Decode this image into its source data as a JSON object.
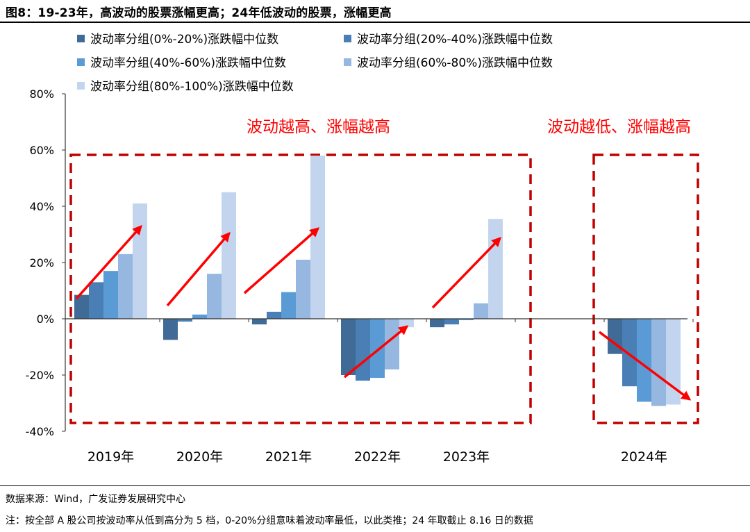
{
  "header": {
    "title": "图8：19-23年，高波动的股票涨幅更高；24年低波动的股票，涨幅更高"
  },
  "footer": {
    "source": "数据来源：Wind，广发证券发展研究中心",
    "note": "注：按全部 A 股公司按波动率从低到高分为 5 档，0-20%分组意味着波动率最低，以此类推；24 年取截止 8.16 日的数据"
  },
  "chart_data": {
    "type": "bar",
    "categories": [
      "2019年",
      "2020年",
      "2021年",
      "2022年",
      "2023年",
      "2024年"
    ],
    "series": [
      {
        "name": "波动率分组(0%-20%)涨跌幅中位数",
        "color": "#3f6b96",
        "values": [
          8.5,
          -7.5,
          -2.0,
          -20.0,
          -3.0,
          -12.5
        ]
      },
      {
        "name": "波动率分组(20%-40%)涨跌幅中位数",
        "color": "#4a7fb5",
        "values": [
          13.0,
          -1.0,
          2.5,
          -22.0,
          -2.0,
          -24.0
        ]
      },
      {
        "name": "波动率分组(40%-60%)涨跌幅中位数",
        "color": "#5b9bd5",
        "values": [
          17.0,
          1.5,
          9.5,
          -21.0,
          -0.5,
          -29.5
        ]
      },
      {
        "name": "波动率分组(60%-80%)涨跌幅中位数",
        "color": "#95b7e0",
        "values": [
          23.0,
          16.0,
          21.0,
          -18.0,
          5.5,
          -31.0
        ]
      },
      {
        "name": "波动率分组(80%-100%)涨跌幅中位数",
        "color": "#c3d5ee",
        "values": [
          41.0,
          45.0,
          58.0,
          -3.0,
          35.5,
          -30.5
        ]
      }
    ],
    "yticks": [
      "80%",
      "60%",
      "40%",
      "20%",
      "0%",
      "-20%",
      "-40%"
    ],
    "ylim": [
      -40,
      80
    ],
    "legend_position": "top-left",
    "grid": false,
    "annotations": [
      {
        "text": "波动越高、涨幅越高",
        "color": "#ff0000"
      },
      {
        "text": "波动越低、涨幅越高",
        "color": "#ff0000"
      }
    ]
  }
}
